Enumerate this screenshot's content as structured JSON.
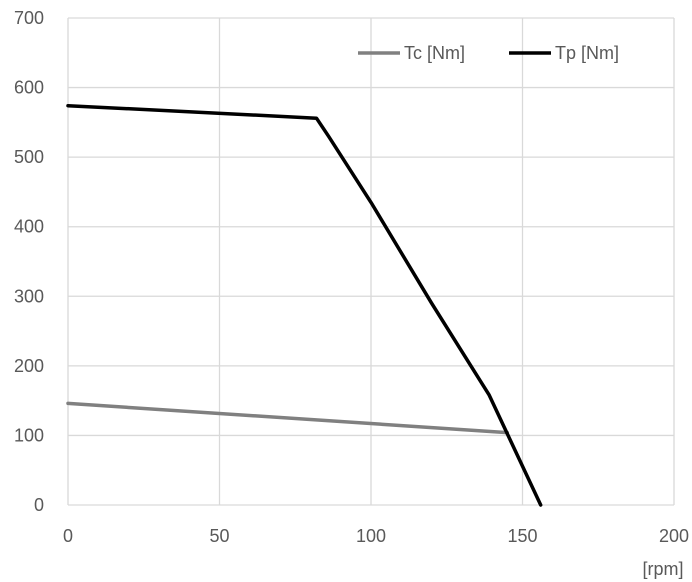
{
  "chart_data": {
    "type": "line",
    "xlabel": "[rpm]",
    "ylabel": "",
    "xlim": [
      0,
      200
    ],
    "ylim": [
      0,
      700
    ],
    "x_ticks": [
      "0",
      "50",
      "100",
      "150",
      "200"
    ],
    "y_ticks": [
      "0",
      "100",
      "200",
      "300",
      "400",
      "500",
      "600",
      "700"
    ],
    "grid": true,
    "legend_position": "top-right",
    "series": [
      {
        "name": "Tc [Nm]",
        "color": "#808080",
        "points": [
          [
            0,
            146
          ],
          [
            145,
            104
          ]
        ]
      },
      {
        "name": "Tp [Nm]",
        "color": "#000000",
        "points": [
          [
            0,
            574
          ],
          [
            82,
            556
          ],
          [
            86,
            530
          ],
          [
            100,
            435
          ],
          [
            120,
            290
          ],
          [
            139,
            158
          ],
          [
            156,
            0
          ]
        ]
      }
    ]
  }
}
